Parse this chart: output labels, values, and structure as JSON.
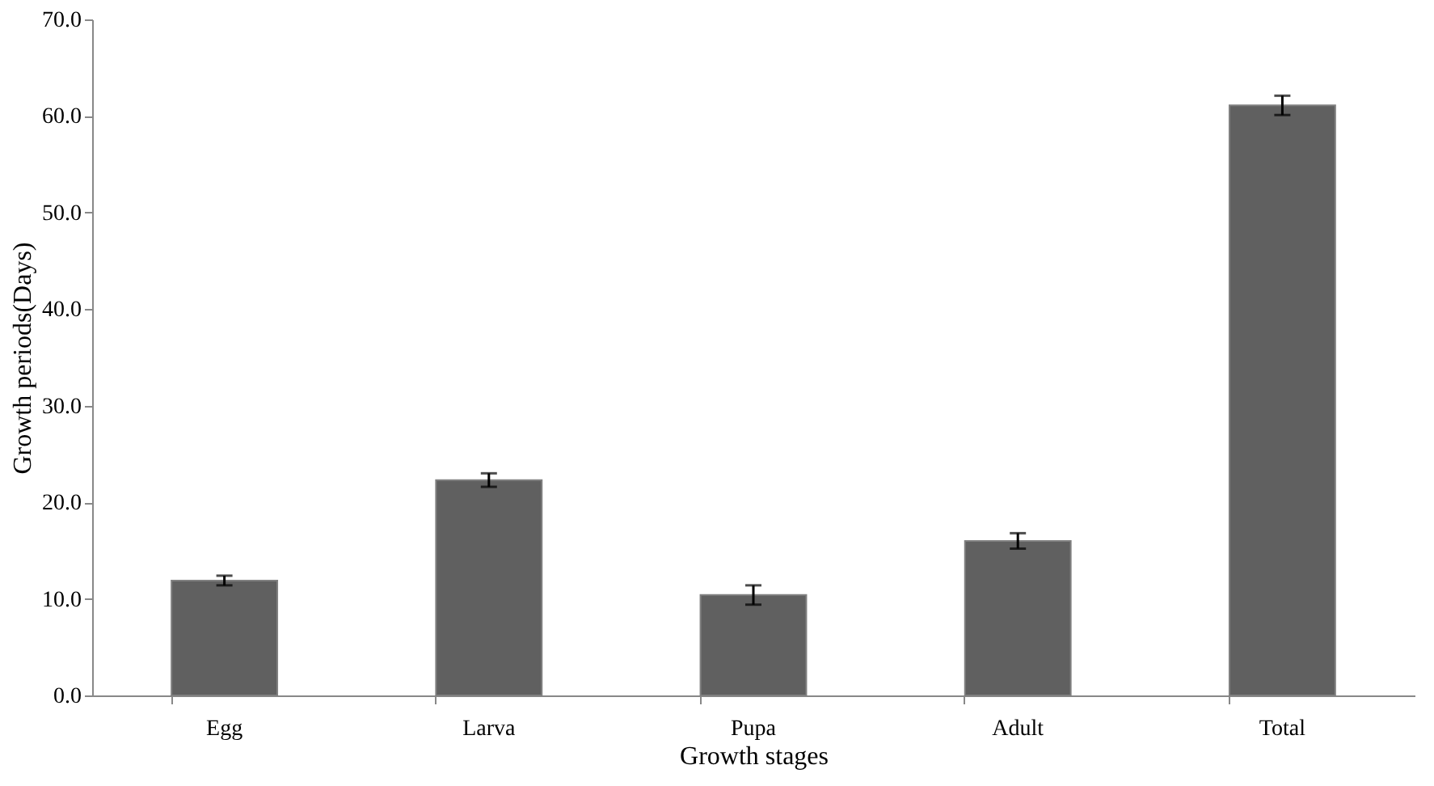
{
  "chart_data": {
    "type": "bar",
    "xlabel": "Growth stages",
    "ylabel": "Growth periods(Days)",
    "categories": [
      "Egg",
      "Larva",
      "Pupa",
      "Adult",
      "Total"
    ],
    "values": [
      11.9,
      22.3,
      10.4,
      16.0,
      61.1
    ],
    "errors": [
      0.5,
      0.7,
      1.0,
      0.8,
      1.0
    ],
    "color": "#606060",
    "ylim": [
      0,
      70
    ],
    "yticks": [
      {
        "value": 0,
        "label": "0.0"
      },
      {
        "value": 10,
        "label": "10.0"
      },
      {
        "value": 20,
        "label": "20.0"
      },
      {
        "value": 30,
        "label": "30.0"
      },
      {
        "value": 40,
        "label": "40.0"
      },
      {
        "value": 50,
        "label": "50.0"
      },
      {
        "value": 60,
        "label": "60.0"
      },
      {
        "value": 70,
        "label": "70.0"
      }
    ],
    "grid": false
  }
}
